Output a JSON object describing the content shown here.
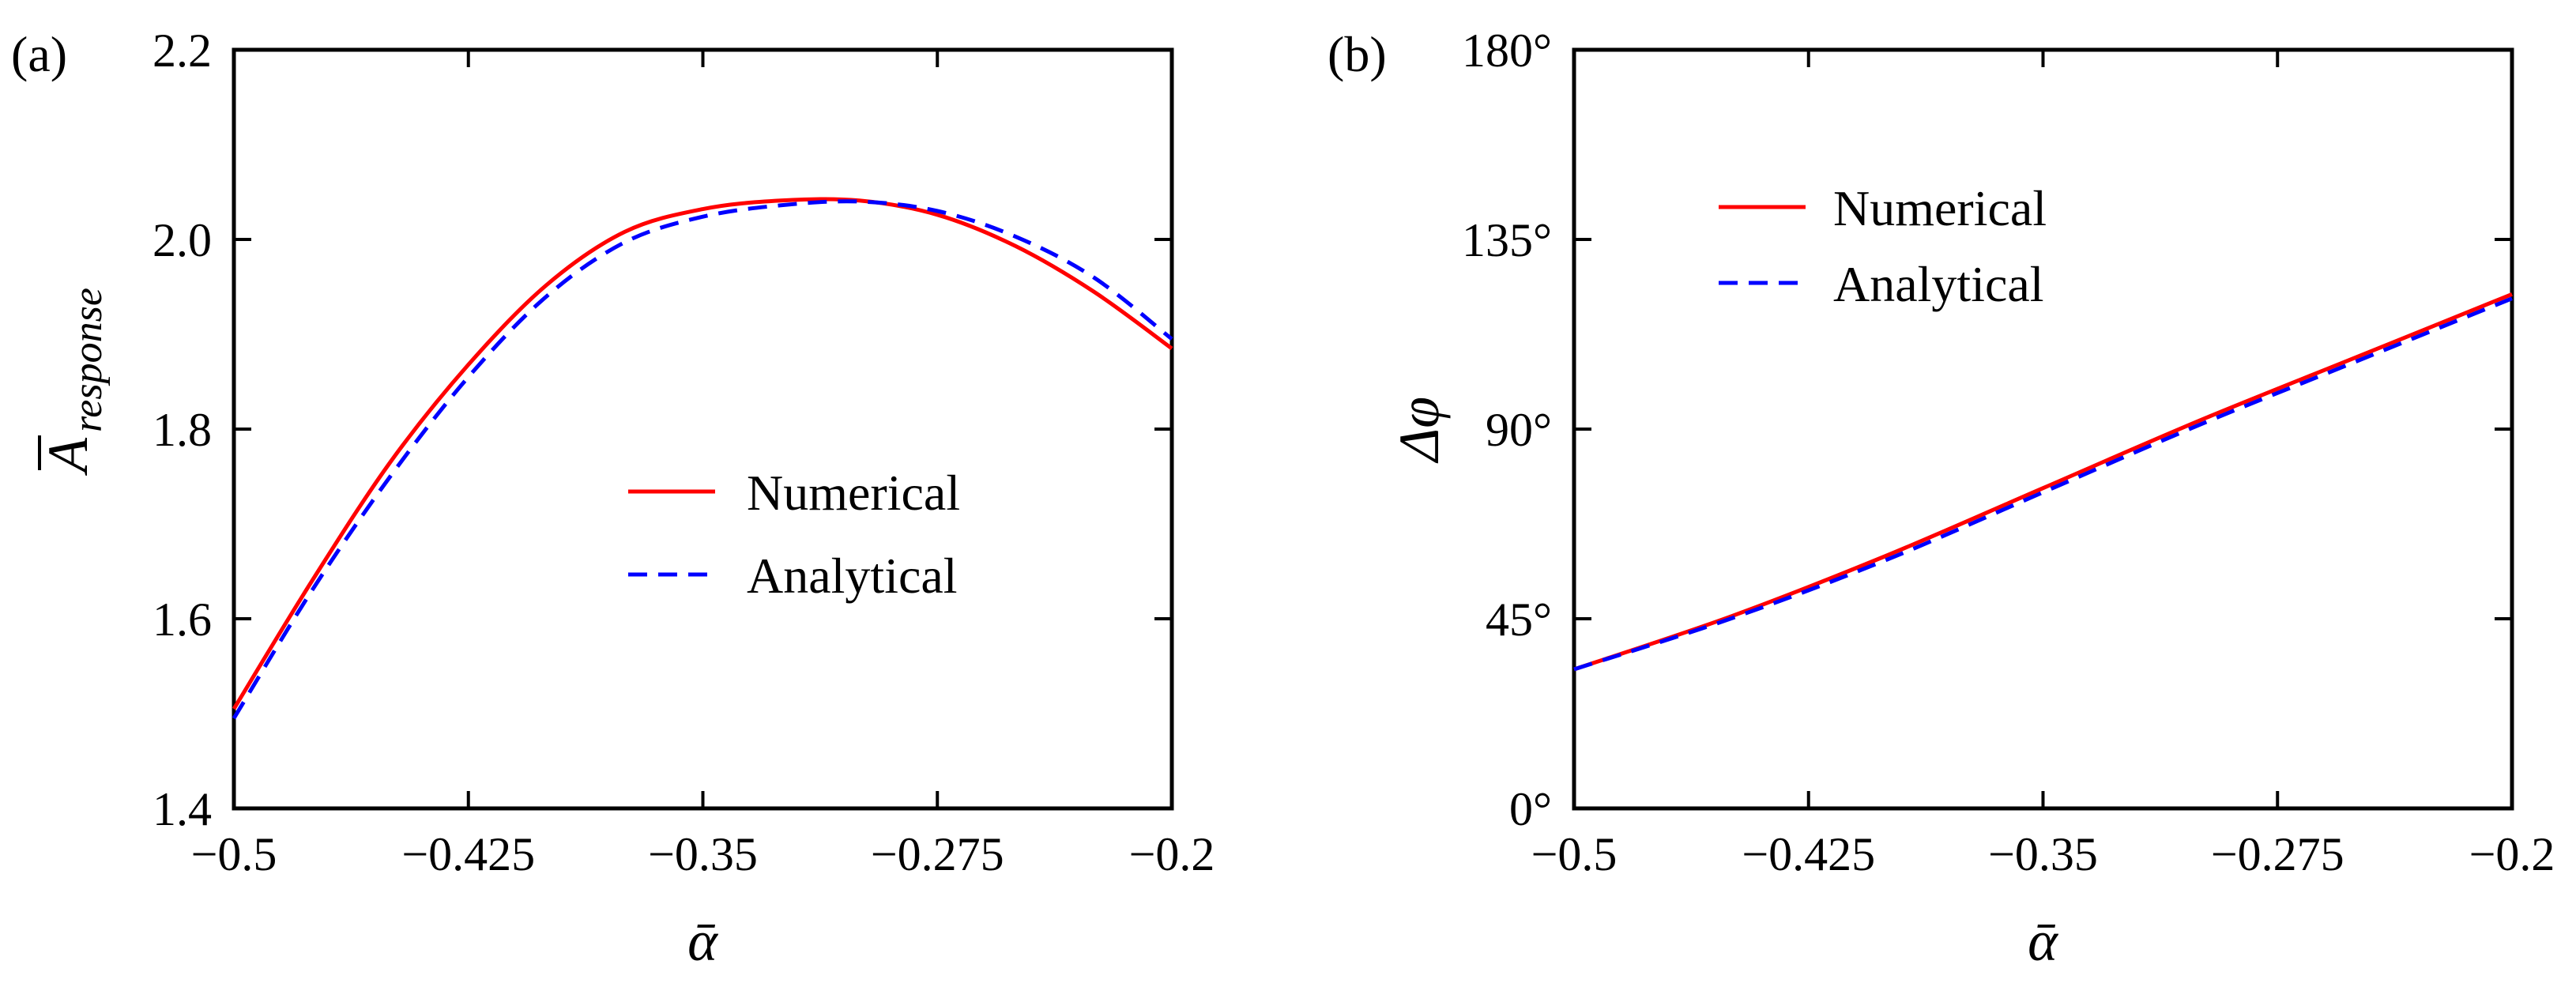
{
  "figure": {
    "panel_labels": [
      "(a)",
      "(b)"
    ]
  },
  "colors": {
    "numerical": "#ff0000",
    "analytical": "#0000ff",
    "axis": "#000000"
  },
  "chart_data": [
    {
      "type": "line",
      "panel": "(a)",
      "xlabel": "ᾱ",
      "ylabel_main": "A",
      "ylabel_sub": "response",
      "xlim": [
        -0.5,
        -0.2
      ],
      "ylim": [
        1.4,
        2.2
      ],
      "xticks": [
        -0.5,
        -0.425,
        -0.35,
        -0.275,
        -0.2
      ],
      "xtick_labels": [
        "−0.5",
        "−0.425",
        "−0.35",
        "−0.275",
        "−0.2"
      ],
      "yticks": [
        1.4,
        1.6,
        1.8,
        2.0,
        2.2
      ],
      "ytick_labels": [
        "1.4",
        "1.6",
        "1.8",
        "2.0",
        "2.2"
      ],
      "legend_position": "center-right",
      "series": [
        {
          "name": "Numerical",
          "style": "solid",
          "x": [
            -0.5,
            -0.475,
            -0.45,
            -0.425,
            -0.4,
            -0.375,
            -0.35,
            -0.325,
            -0.3,
            -0.275,
            -0.25,
            -0.225,
            -0.2
          ],
          "y": [
            1.505,
            1.64,
            1.765,
            1.868,
            1.952,
            2.008,
            2.032,
            2.041,
            2.041,
            2.026,
            1.993,
            1.945,
            1.885
          ]
        },
        {
          "name": "Analytical",
          "style": "dashed",
          "x": [
            -0.5,
            -0.475,
            -0.45,
            -0.425,
            -0.4,
            -0.375,
            -0.35,
            -0.325,
            -0.3,
            -0.275,
            -0.25,
            -0.225,
            -0.2
          ],
          "y": [
            1.495,
            1.63,
            1.75,
            1.855,
            1.94,
            1.997,
            2.024,
            2.036,
            2.04,
            2.03,
            2.003,
            1.96,
            1.895
          ]
        }
      ]
    },
    {
      "type": "line",
      "panel": "(b)",
      "xlabel": "ᾱ",
      "ylabel": "Δφ",
      "xlim": [
        -0.5,
        -0.2
      ],
      "ylim": [
        0,
        180
      ],
      "xticks": [
        -0.5,
        -0.425,
        -0.35,
        -0.275,
        -0.2
      ],
      "xtick_labels": [
        "−0.5",
        "−0.425",
        "−0.35",
        "−0.275",
        "−0.2"
      ],
      "yticks": [
        0,
        45,
        90,
        135,
        180
      ],
      "ytick_labels": [
        "0°",
        "45°",
        "90°",
        "135°",
        "180°"
      ],
      "legend_position": "upper-left",
      "series": [
        {
          "name": "Numerical",
          "style": "solid",
          "x": [
            -0.5,
            -0.45,
            -0.4,
            -0.35,
            -0.3,
            -0.25,
            -0.2
          ],
          "y": [
            33,
            45.5,
            60,
            76,
            92,
            107,
            122
          ]
        },
        {
          "name": "Analytical",
          "style": "dashed",
          "x": [
            -0.5,
            -0.45,
            -0.4,
            -0.35,
            -0.3,
            -0.25,
            -0.2
          ],
          "y": [
            33,
            45,
            59,
            75,
            91,
            106,
            121
          ]
        }
      ]
    }
  ]
}
